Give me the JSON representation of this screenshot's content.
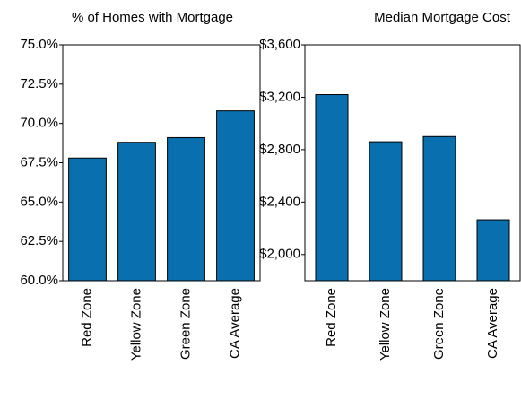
{
  "chart_data": [
    {
      "type": "bar",
      "title": "% of Homes with Mortgage",
      "categories": [
        "Red Zone",
        "Yellow Zone",
        "Green Zone",
        "CA Average"
      ],
      "values": [
        67.8,
        68.8,
        69.1,
        70.8
      ],
      "color": "#0a6fae",
      "ylim": [
        60,
        75
      ],
      "yticks": [
        {
          "value": 60,
          "label": "60.0%"
        },
        {
          "value": 62.5,
          "label": "62.5%"
        },
        {
          "value": 65,
          "label": "65.0%"
        },
        {
          "value": 67.5,
          "label": "67.5%"
        },
        {
          "value": 70,
          "label": "70.0%"
        },
        {
          "value": 72.5,
          "label": "72.5%"
        },
        {
          "value": 75,
          "label": "75.0%"
        }
      ]
    },
    {
      "type": "bar",
      "title": "Median Mortgage Cost",
      "categories": [
        "Red Zone",
        "Yellow Zone",
        "Green Zone",
        "CA Average"
      ],
      "values": [
        3220,
        2860,
        2900,
        2265
      ],
      "color": "#0a6fae",
      "ylim": [
        1800,
        3600
      ],
      "yticks": [
        {
          "value": 2000,
          "label": "$2,000"
        },
        {
          "value": 2400,
          "label": "$2,400"
        },
        {
          "value": 2800,
          "label": "$2,800"
        },
        {
          "value": 3200,
          "label": "$3,200"
        },
        {
          "value": 3600,
          "label": "$3,600"
        }
      ]
    }
  ]
}
